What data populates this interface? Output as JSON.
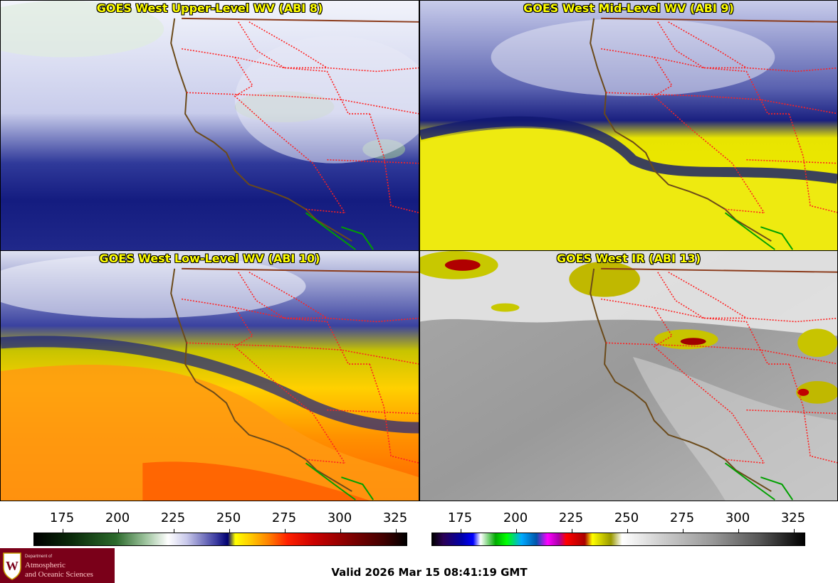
{
  "panels": [
    {
      "title": "GOES West Upper-Level WV (ABI 8)"
    },
    {
      "title": "GOES West Mid-Level WV (ABI 9)"
    },
    {
      "title": "GOES West Low-Level WV (ABI 10)"
    },
    {
      "title": "GOES West IR (ABI 13)"
    }
  ],
  "colorbar_wv": {
    "ticks": [
      "175",
      "200",
      "225",
      "250",
      "275",
      "300",
      "325"
    ]
  },
  "colorbar_ir": {
    "ticks": [
      "175",
      "200",
      "225",
      "250",
      "275",
      "300",
      "325"
    ]
  },
  "logo": {
    "dept": "Department of",
    "line1": "Atmospheric",
    "line2": "and Oceanic Sciences"
  },
  "valid_time": "Valid 2026 Mar 15 08:41:19 GMT",
  "colors": {
    "title_text": "#ffff00",
    "state_borders": "#ff0000",
    "coastline": "#6b4a1a",
    "mexico_border": "#00a000",
    "logo_bg": "#7a0019"
  }
}
